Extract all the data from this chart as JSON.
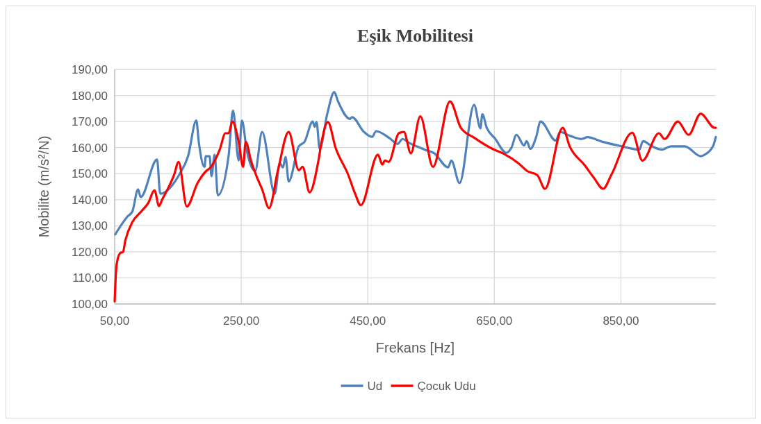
{
  "chart_data": {
    "type": "line",
    "title": "Eşik Mobilitesi",
    "xlabel": "Frekans [Hz]",
    "ylabel": "Mobilite (m/s²/N)",
    "xlim": [
      50,
      1000
    ],
    "xticks": [
      {
        "value": 50,
        "label": "50,00"
      },
      {
        "value": 250,
        "label": "250,00"
      },
      {
        "value": 450,
        "label": "450,00"
      },
      {
        "value": 650,
        "label": "650,00"
      },
      {
        "value": 850,
        "label": "850,00"
      }
    ],
    "ylim": [
      100,
      190
    ],
    "yticks": [
      {
        "value": 100,
        "label": "100,00"
      },
      {
        "value": 110,
        "label": "110,00"
      },
      {
        "value": 120,
        "label": "120,00"
      },
      {
        "value": 130,
        "label": "130,00"
      },
      {
        "value": 140,
        "label": "140,00"
      },
      {
        "value": 150,
        "label": "150,00"
      },
      {
        "value": 160,
        "label": "160,00"
      },
      {
        "value": 170,
        "label": "170,00"
      },
      {
        "value": 180,
        "label": "180,00"
      },
      {
        "value": 190,
        "label": "190,00"
      }
    ],
    "grid": true,
    "legend": "bottom",
    "marker": "none",
    "line_style": "solid",
    "series": [
      {
        "name": "Ud",
        "color": "#4f81bd",
        "x": [
          51,
          61,
          70,
          78,
          87,
          91,
          117,
          122,
          152,
          166,
          179,
          183,
          192,
          194,
          200,
          203,
          208,
          213,
          230,
          237,
          246,
          251,
          259,
          272,
          283,
          303,
          311,
          316,
          320,
          325,
          341,
          350,
          363,
          366,
          369,
          374,
          386,
          397,
          403,
          422,
          425,
          444,
          457,
          463,
          485,
          497,
          505,
          514,
          540,
          555,
          577,
          582,
          595,
          618,
          628,
          631,
          638,
          651,
          669,
          677,
          685,
          697,
          701,
          707,
          716,
          723,
          747,
          754,
          769,
          788,
          797,
          821,
          851,
          879,
          885,
          899,
          915,
          929,
          951,
          976,
          984,
          996,
          1000
        ],
        "values": [
          126.7,
          130.5,
          133.5,
          135.5,
          144,
          141,
          155.4,
          142.3,
          149.6,
          156.7,
          170.4,
          162,
          152.6,
          156.7,
          156.7,
          149,
          157.3,
          141.7,
          156.7,
          174.2,
          155,
          170.4,
          158.6,
          151,
          166,
          142.3,
          154,
          152.4,
          156.4,
          147,
          160.5,
          162.2,
          170,
          168,
          169.8,
          159.5,
          173,
          181.3,
          177.7,
          171,
          171.7,
          166,
          164.1,
          166.3,
          163.5,
          161.4,
          163.3,
          162,
          159.2,
          157.8,
          152.4,
          155,
          146.4,
          176.4,
          167.4,
          172.8,
          167.6,
          163.5,
          158,
          160,
          164.9,
          160.8,
          162.5,
          159.5,
          164,
          170,
          162.7,
          166,
          164.6,
          163.3,
          164,
          162.2,
          160.5,
          159.2,
          162.5,
          160.5,
          159.2,
          160.5,
          160.5,
          156.7,
          157.5,
          160.8,
          164.1
        ]
      },
      {
        "name": "Çocuk Udu",
        "color": "#ff0000",
        "x": [
          50,
          53,
          59,
          63,
          67,
          78,
          92,
          103,
          113,
          120,
          125,
          144,
          151,
          164,
          181,
          196,
          200,
          216,
          225,
          230,
          236,
          246,
          253,
          257,
          266,
          275,
          283,
          294,
          308,
          325,
          341,
          347,
          358,
          372,
          377,
          387,
          399,
          419,
          430,
          439,
          466,
          473,
          477,
          483,
          499,
          507,
          518,
          533,
          553,
          580,
          597,
          618,
          647,
          666,
          688,
          702,
          718,
          730,
          758,
          769,
          793,
          807,
          822,
          835,
          868,
          884,
          910,
          919,
          940,
          957,
          976,
          998,
          1000
        ],
        "values": [
          101,
          115,
          119.6,
          119.9,
          124.5,
          131.4,
          135.5,
          138.7,
          143.6,
          137.6,
          140,
          149.6,
          154.5,
          137.4,
          146.4,
          151.3,
          152,
          159.2,
          165.5,
          165.5,
          170,
          162.2,
          152.6,
          162.2,
          154.5,
          148.5,
          144,
          136.8,
          151.3,
          166,
          151.3,
          152.6,
          142.8,
          155,
          162.2,
          169.8,
          160,
          149.6,
          142.3,
          137.9,
          157.3,
          153.5,
          155,
          154.5,
          165.5,
          166,
          157.8,
          172,
          152.6,
          177.7,
          167.6,
          163.8,
          159.5,
          157.5,
          154,
          151,
          149.4,
          144.2,
          167.6,
          160.5,
          153.2,
          148.5,
          144.2,
          149.6,
          165.7,
          155,
          165.5,
          163.3,
          170,
          164.9,
          173,
          167.6,
          167.6
        ]
      }
    ]
  }
}
